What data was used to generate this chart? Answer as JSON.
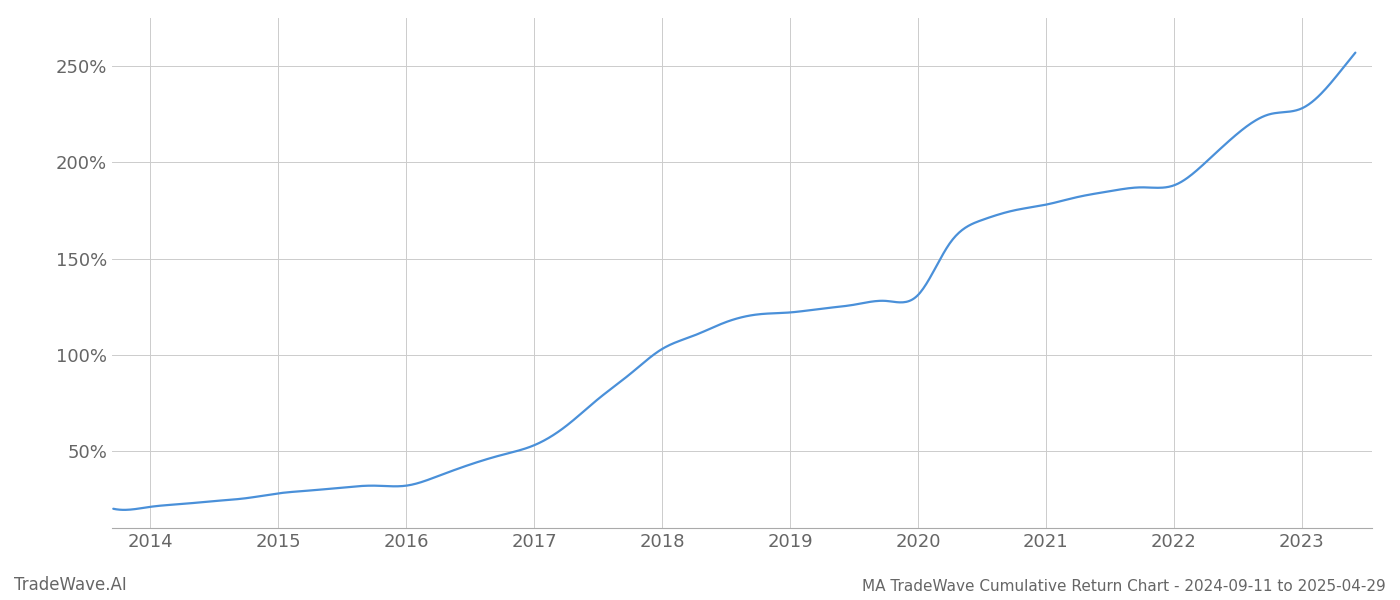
{
  "title": "MA TradeWave Cumulative Return Chart - 2024-09-11 to 2025-04-29",
  "watermark": "TradeWave.AI",
  "line_color": "#4a90d9",
  "background_color": "#ffffff",
  "grid_color": "#cccccc",
  "text_color": "#666666",
  "x_years": [
    2014,
    2015,
    2016,
    2017,
    2018,
    2019,
    2020,
    2021,
    2022,
    2023
  ],
  "y_ticks": [
    50,
    100,
    150,
    200,
    250
  ],
  "xlim": [
    2013.7,
    2023.55
  ],
  "ylim": [
    10,
    275
  ],
  "data_x": [
    2013.71,
    2013.83,
    2014.0,
    2014.25,
    2014.5,
    2014.75,
    2015.0,
    2015.25,
    2015.5,
    2015.75,
    2016.0,
    2016.25,
    2016.5,
    2016.75,
    2017.0,
    2017.25,
    2017.5,
    2017.75,
    2018.0,
    2018.25,
    2018.5,
    2018.75,
    2019.0,
    2019.25,
    2019.5,
    2019.75,
    2020.0,
    2020.25,
    2020.5,
    2020.75,
    2021.0,
    2021.25,
    2021.5,
    2021.75,
    2022.0,
    2022.25,
    2022.5,
    2022.75,
    2023.0,
    2023.25,
    2023.42
  ],
  "data_y": [
    20,
    19.5,
    21,
    22.5,
    24,
    25.5,
    28,
    29.5,
    31,
    32,
    32,
    37,
    43,
    48,
    53,
    63,
    77,
    90,
    103,
    110,
    117,
    121,
    122,
    124,
    126,
    128,
    131,
    158,
    170,
    175,
    178,
    182,
    185,
    187,
    188,
    200,
    215,
    225,
    228,
    243,
    257
  ],
  "line_width": 1.6,
  "font_family": "DejaVu Sans",
  "tick_fontsize": 13,
  "footer_fontsize": 11,
  "watermark_fontsize": 12,
  "spine_color": "#aaaaaa"
}
